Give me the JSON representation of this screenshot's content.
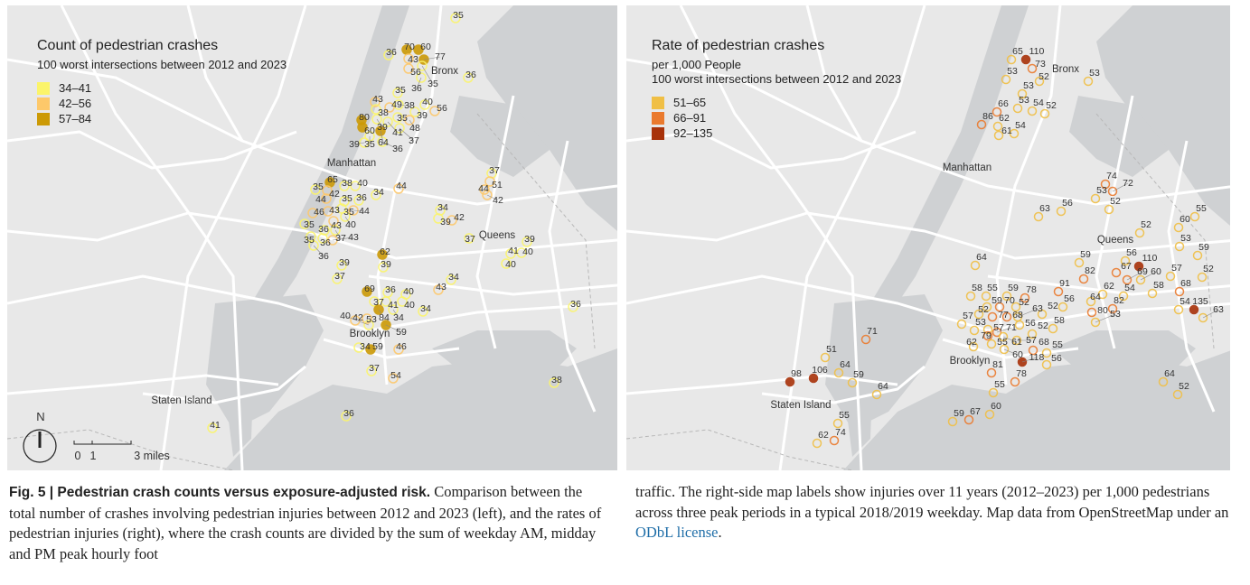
{
  "left_map": {
    "title": "Count of pedestrian crashes",
    "subtitle": "100 worst intersections between 2012 and 2023",
    "legend": [
      {
        "label": "34–41",
        "color": "#fbf46a"
      },
      {
        "label": "42–56",
        "color": "#fdc86a"
      },
      {
        "label": "57–84",
        "color": "#cc9a06"
      }
    ],
    "places": [
      "Bronx",
      "Manhattan",
      "Queens",
      "Brooklyn",
      "Staten Island"
    ],
    "north": "N",
    "scale": {
      "zero": "0",
      "one": "1",
      "three": "3 miles"
    },
    "points": [
      "35",
      "36",
      "70",
      "60",
      "43",
      "77",
      "56",
      "35",
      "36",
      "36",
      "35",
      "43",
      "38",
      "49",
      "38",
      "40",
      "56",
      "39",
      "35",
      "48",
      "80",
      "39",
      "41",
      "60",
      "64",
      "37",
      "35",
      "36",
      "39",
      "37",
      "51",
      "44",
      "42",
      "65",
      "38",
      "40",
      "35",
      "42",
      "34",
      "44",
      "44",
      "35",
      "36",
      "35",
      "44",
      "46",
      "43",
      "34",
      "39",
      "42",
      "40",
      "43",
      "35",
      "36",
      "37",
      "35",
      "36",
      "43",
      "36",
      "37",
      "39",
      "41",
      "40",
      "40",
      "62",
      "39",
      "39",
      "37",
      "34",
      "43",
      "69",
      "36",
      "40",
      "37",
      "41",
      "40",
      "84",
      "34",
      "34",
      "42",
      "53",
      "40",
      "59",
      "34",
      "59",
      "46",
      "37",
      "54",
      "38",
      "36",
      "41",
      "36"
    ]
  },
  "right_map": {
    "title": "Rate of pedestrian crashes",
    "subtitle1": "per 1,000 People",
    "subtitle2": "100 worst intersections between 2012 and 2023",
    "legend": [
      {
        "label": "51–65",
        "color": "#f0bf45"
      },
      {
        "label": "66–91",
        "color": "#ea7a2e"
      },
      {
        "label": "92–135",
        "color": "#a8320a"
      }
    ],
    "places": [
      "Bronx",
      "Manhattan",
      "Queens",
      "Brooklyn",
      "Staten Island"
    ],
    "points": [
      "65",
      "110",
      "73",
      "53",
      "52",
      "53",
      "53",
      "66",
      "53",
      "54",
      "52",
      "86",
      "62",
      "61",
      "54",
      "74",
      "72",
      "53",
      "52",
      "63",
      "56",
      "55",
      "60",
      "52",
      "53",
      "59",
      "56",
      "110",
      "67",
      "69",
      "60",
      "57",
      "52",
      "59",
      "82",
      "64",
      "91",
      "62",
      "54",
      "58",
      "68",
      "54",
      "135",
      "63",
      "64",
      "80",
      "82",
      "53",
      "58",
      "55",
      "59",
      "78",
      "70",
      "59",
      "52",
      "52",
      "77",
      "68",
      "63",
      "56",
      "57",
      "53",
      "57",
      "71",
      "52",
      "56",
      "52",
      "58",
      "79",
      "61",
      "57",
      "62",
      "55",
      "60",
      "68",
      "55",
      "56",
      "118",
      "81",
      "78",
      "55",
      "60",
      "59",
      "67",
      "71",
      "51",
      "98",
      "106",
      "64",
      "59",
      "64",
      "55",
      "74",
      "62",
      "64",
      "52"
    ]
  },
  "caption": {
    "lead": "Fig. 5 | Pedestrian crash counts versus exposure-adjusted risk.",
    "left_text": " Comparison between the total number of crashes involving pedestrian injuries between 2012 and 2023 (left), and the rates of pedestrian injuries (right), where the crash counts are divided by the sum of weekday AM, midday and PM peak hourly foot",
    "right_text": "traffic. The right-side map labels show injuries over 11 years (2012–2023) per 1,000 pedestrians across three peak periods in a typical 2018/2019 weekday. Map data from OpenStreetMap under an ",
    "link": "ODbL license",
    "end": "."
  }
}
